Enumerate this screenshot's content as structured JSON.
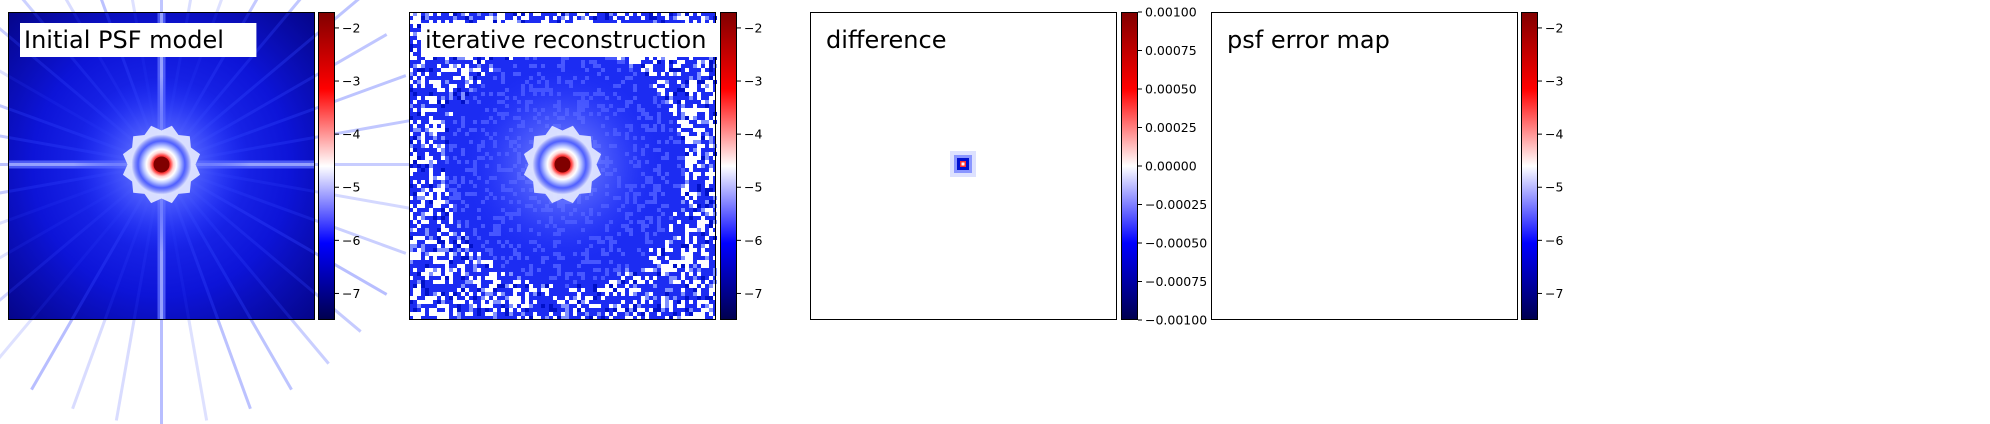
{
  "chart_data": [
    {
      "type": "heatmap",
      "title": "Initial PSF model",
      "variant": "psf",
      "colormap": "seismic",
      "colorbar": {
        "ticks": [
          -2,
          -3,
          -4,
          -5,
          -6,
          -7
        ],
        "tick_labels": [
          "−2",
          "−3",
          "−4",
          "−5",
          "−6",
          "−7"
        ],
        "range": [
          -7.5,
          -1.7
        ]
      }
    },
    {
      "type": "heatmap",
      "title": "iterative reconstruction",
      "variant": "reconstruction",
      "colormap": "seismic",
      "colorbar": {
        "ticks": [
          -2,
          -3,
          -4,
          -5,
          -6,
          -7
        ],
        "tick_labels": [
          "−2",
          "−3",
          "−4",
          "−5",
          "−6",
          "−7"
        ],
        "range": [
          -7.5,
          -1.7
        ]
      }
    },
    {
      "type": "heatmap",
      "title": "difference",
      "variant": "difference",
      "colormap": "seismic",
      "colorbar": {
        "ticks": [
          0.001,
          0.00075,
          0.0005,
          0.00025,
          0,
          -0.00025,
          -0.0005,
          -0.00075,
          -0.001
        ],
        "tick_labels": [
          "0.00100",
          "0.00075",
          "0.00050",
          "0.00025",
          "0.00000",
          "−0.00025",
          "−0.00050",
          "−0.00075",
          "−0.00100"
        ],
        "range": [
          -0.001,
          0.001
        ]
      }
    },
    {
      "type": "heatmap",
      "title": "psf error map",
      "variant": "empty",
      "colormap": "seismic",
      "colorbar": {
        "ticks": [
          -2,
          -3,
          -4,
          -5,
          -6,
          -7
        ],
        "tick_labels": [
          "−2",
          "−3",
          "−4",
          "−5",
          "−6",
          "−7"
        ],
        "range": [
          -7.5,
          -1.7
        ]
      }
    }
  ]
}
